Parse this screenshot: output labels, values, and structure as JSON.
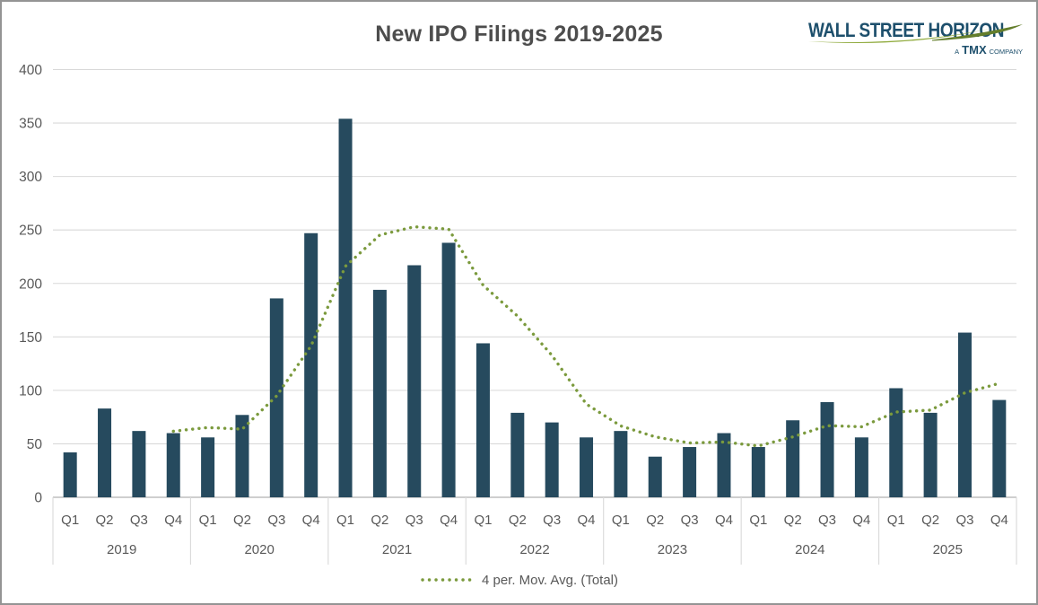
{
  "title": "New IPO Filings 2019-2025",
  "logo": {
    "brand": "WALL STREET HORIZON",
    "sub_a": "A",
    "sub_tmx": "TMX",
    "sub_company": "COMPANY"
  },
  "legend": {
    "label": "4 per. Mov. Avg. (Total)"
  },
  "colors": {
    "bar": "#264a5e",
    "mov_avg": "#7b9a3d",
    "gridline": "#d9d9d9",
    "axis_line": "#bfbfbf",
    "text": "#595959",
    "title_text": "#4d4d4d",
    "border": "#949494",
    "background": "#ffffff",
    "logo_navy": "#1d4f6c",
    "logo_green": "#8faa3c",
    "logo_green_dark": "#647e2b"
  },
  "chart_data": {
    "type": "bar",
    "title": "New IPO Filings 2019-2025",
    "xlabel": "",
    "ylabel": "",
    "ylim": [
      0,
      400
    ],
    "yticks": [
      0,
      50,
      100,
      150,
      200,
      250,
      300,
      350,
      400
    ],
    "grid": "horizontal",
    "legend_position": "bottom",
    "years": [
      "2019",
      "2020",
      "2021",
      "2022",
      "2023",
      "2024",
      "2025"
    ],
    "quarter_labels": [
      "Q1",
      "Q2",
      "Q3",
      "Q4"
    ],
    "categories": [
      "2019 Q1",
      "2019 Q2",
      "2019 Q3",
      "2019 Q4",
      "2020 Q1",
      "2020 Q2",
      "2020 Q3",
      "2020 Q4",
      "2021 Q1",
      "2021 Q2",
      "2021 Q3",
      "2021 Q4",
      "2022 Q1",
      "2022 Q2",
      "2022 Q3",
      "2022 Q4",
      "2023 Q1",
      "2023 Q2",
      "2023 Q3",
      "2023 Q4",
      "2024 Q1",
      "2024 Q2",
      "2024 Q3",
      "2024 Q4",
      "2025 Q1",
      "2025 Q2",
      "2025 Q3",
      "2025 Q4"
    ],
    "series": [
      {
        "name": "Total",
        "type": "bar",
        "values": [
          42,
          83,
          62,
          60,
          56,
          77,
          186,
          247,
          354,
          194,
          217,
          238,
          144,
          79,
          70,
          56,
          62,
          38,
          47,
          60,
          47,
          72,
          89,
          56,
          102,
          79,
          154,
          91
        ]
      },
      {
        "name": "4 per. Mov. Avg. (Total)",
        "type": "dotted-line",
        "values": [
          null,
          null,
          null,
          61.75,
          65.25,
          63.75,
          94.75,
          141.5,
          216,
          245.25,
          253,
          250.75,
          198.25,
          169.5,
          132.75,
          87.25,
          66.75,
          56.5,
          50.75,
          51.75,
          48,
          56.5,
          67,
          66,
          79.75,
          81.5,
          97.75,
          106.5
        ]
      }
    ]
  }
}
